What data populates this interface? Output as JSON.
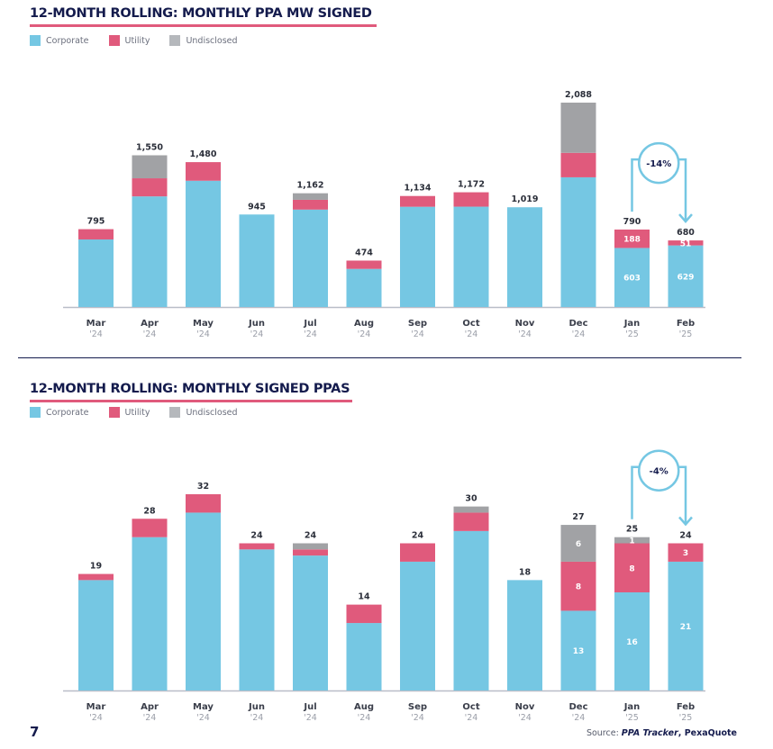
{
  "colors": {
    "corporate": "#75c7e3",
    "utility": "#e05a7c",
    "undisclosed": "#a1a2a5",
    "title": "#141b4d",
    "underline": "#e05a7c",
    "annotation": "#75c7e3"
  },
  "legend": {
    "corporate": "Corporate",
    "utility": "Utility",
    "undisclosed": "Undisclosed"
  },
  "page_number": "7",
  "source": {
    "prefix": "Source: ",
    "tracker": "PPA Tracker",
    "sep": ", ",
    "vendor": "PexaQuote"
  },
  "chart_data": [
    {
      "type": "bar",
      "stacked": true,
      "title": "12-MONTH ROLLING: MONTHLY PPA MW SIGNED",
      "xlabel": "",
      "ylabel": "",
      "legend_position": "top-left",
      "grid": false,
      "ylim": [
        0,
        2088
      ],
      "categories": [
        "Mar",
        "Apr",
        "May",
        "Jun",
        "Jul",
        "Aug",
        "Sep",
        "Oct",
        "Nov",
        "Dec",
        "Jan",
        "Feb"
      ],
      "years": [
        "'24",
        "'24",
        "'24",
        "'24",
        "'24",
        "'24",
        "'24",
        "'24",
        "'24",
        "'24",
        "'25",
        "'25"
      ],
      "totals": [
        795,
        1550,
        1480,
        945,
        1162,
        474,
        1134,
        1172,
        1019,
        2088,
        790,
        680
      ],
      "total_labels": [
        "795",
        "1,550",
        "1,480",
        "945",
        "1,162",
        "474",
        "1,134",
        "1,172",
        "1,019",
        "2,088",
        "790",
        "680"
      ],
      "series": [
        {
          "name": "Corporate",
          "key": "corporate",
          "values": [
            690,
            1130,
            1290,
            945,
            995,
            389,
            1024,
            1025,
            1019,
            1325,
            603,
            629
          ]
        },
        {
          "name": "Utility",
          "key": "utility",
          "values": [
            105,
            185,
            190,
            0,
            100,
            85,
            110,
            147,
            0,
            250,
            188,
            51
          ]
        },
        {
          "name": "Undisclosed",
          "key": "undisclosed",
          "values": [
            0,
            235,
            0,
            0,
            67,
            0,
            0,
            0,
            0,
            513,
            0,
            0
          ]
        }
      ],
      "segment_labels": [
        {
          "index": 10,
          "series": "corporate",
          "text": "603"
        },
        {
          "index": 10,
          "series": "utility",
          "text": "188"
        },
        {
          "index": 11,
          "series": "corporate",
          "text": "629"
        },
        {
          "index": 11,
          "series": "utility",
          "text": "51"
        }
      ],
      "annotation": {
        "text": "-14%",
        "from_index": 10,
        "to_index": 11
      }
    },
    {
      "type": "bar",
      "stacked": true,
      "title": "12-MONTH ROLLING: MONTHLY SIGNED PPAS",
      "xlabel": "",
      "ylabel": "",
      "legend_position": "top-left",
      "grid": false,
      "ylim": [
        0,
        32
      ],
      "categories": [
        "Mar",
        "Apr",
        "May",
        "Jun",
        "Jul",
        "Aug",
        "Sep",
        "Oct",
        "Nov",
        "Dec",
        "Jan",
        "Feb"
      ],
      "years": [
        "'24",
        "'24",
        "'24",
        "'24",
        "'24",
        "'24",
        "'24",
        "'24",
        "'24",
        "'24",
        "'25",
        "'25"
      ],
      "totals": [
        19,
        28,
        32,
        24,
        24,
        14,
        24,
        30,
        18,
        27,
        25,
        24
      ],
      "total_labels": [
        "19",
        "28",
        "32",
        "24",
        "24",
        "14",
        "24",
        "30",
        "18",
        "27",
        "25",
        "24"
      ],
      "series": [
        {
          "name": "Corporate",
          "key": "corporate",
          "values": [
            18,
            25,
            29,
            23,
            22,
            11,
            21,
            26,
            18,
            13,
            16,
            21
          ]
        },
        {
          "name": "Utility",
          "key": "utility",
          "values": [
            1,
            3,
            3,
            1,
            1,
            3,
            3,
            3,
            0,
            8,
            8,
            3
          ]
        },
        {
          "name": "Undisclosed",
          "key": "undisclosed",
          "values": [
            0,
            0,
            0,
            0,
            1,
            0,
            0,
            1,
            0,
            6,
            1,
            0
          ]
        }
      ],
      "segment_labels": [
        {
          "index": 9,
          "series": "corporate",
          "text": "13"
        },
        {
          "index": 9,
          "series": "utility",
          "text": "8"
        },
        {
          "index": 9,
          "series": "undisclosed",
          "text": "6"
        },
        {
          "index": 10,
          "series": "corporate",
          "text": "16"
        },
        {
          "index": 10,
          "series": "utility",
          "text": "8"
        },
        {
          "index": 10,
          "series": "undisclosed",
          "text": "1"
        },
        {
          "index": 11,
          "series": "corporate",
          "text": "21"
        },
        {
          "index": 11,
          "series": "utility",
          "text": "3"
        }
      ],
      "annotation": {
        "text": "-4%",
        "from_index": 10,
        "to_index": 11
      }
    }
  ]
}
